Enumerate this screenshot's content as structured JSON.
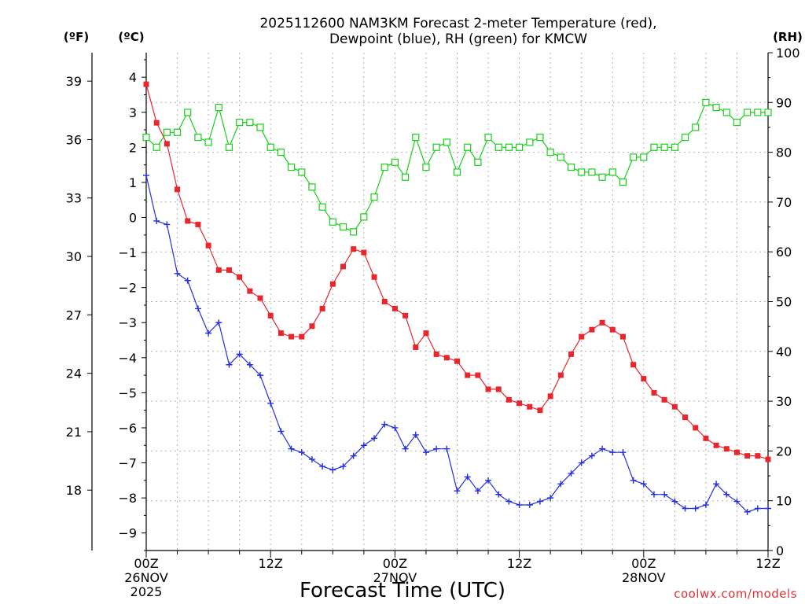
{
  "colors": {
    "temperature": "#e8262c",
    "dewpoint": "#2430e0",
    "rh": "#18d018",
    "grid": "#b0b0b0",
    "credit": "#e03030"
  },
  "chart_data": {
    "type": "line",
    "title": "2025112600 NAM3KM Forecast 2-meter Temperature (red),",
    "subtitle": "Dewpoint (blue), RH (green) for KMCW",
    "xlabel": "Forecast Time (UTC)",
    "credit": "coolwx.com/models",
    "left_unit_f": "(ºF)",
    "left_unit_c": "(ºC)",
    "right_unit": "(RH)",
    "x_range_hours": [
      0,
      60
    ],
    "x_step_hours": 1,
    "x_ticks": [
      {
        "hour": 0,
        "lines": [
          "00Z",
          "26NOV",
          "2025"
        ]
      },
      {
        "hour": 12,
        "lines": [
          "12Z"
        ]
      },
      {
        "hour": 24,
        "lines": [
          "00Z",
          "27NOV"
        ]
      },
      {
        "hour": 36,
        "lines": [
          "12Z"
        ]
      },
      {
        "hour": 48,
        "lines": [
          "00Z",
          "28NOV"
        ]
      },
      {
        "hour": 60,
        "lines": [
          "12Z"
        ]
      }
    ],
    "ylim_c": [
      -9.5,
      4.7
    ],
    "y_ticks_c": [
      4,
      3,
      2,
      1,
      0,
      -1,
      -2,
      -3,
      -4,
      -5,
      -6,
      -7,
      -8,
      -9
    ],
    "y_ticks_f": [
      39,
      36,
      33,
      30,
      27,
      24,
      21,
      18
    ],
    "ylim_rh": [
      0,
      100
    ],
    "y_ticks_rh": [
      100,
      90,
      80,
      70,
      60,
      50,
      40,
      30,
      20,
      10,
      0
    ],
    "series": [
      {
        "name": "Temperature",
        "unit": "C",
        "values": [
          3.8,
          2.7,
          2.1,
          0.8,
          -0.1,
          -0.2,
          -0.8,
          -1.5,
          -1.5,
          -1.7,
          -2.1,
          -2.3,
          -2.8,
          -3.3,
          -3.4,
          -3.4,
          -3.1,
          -2.6,
          -1.9,
          -1.4,
          -0.9,
          -1.0,
          -1.7,
          -2.4,
          -2.6,
          -2.8,
          -3.7,
          -3.3,
          -3.9,
          -4.0,
          -4.1,
          -4.5,
          -4.5,
          -4.9,
          -4.9,
          -5.2,
          -5.3,
          -5.4,
          -5.5,
          -5.1,
          -4.5,
          -3.9,
          -3.4,
          -3.2,
          -3.0,
          -3.2,
          -3.4,
          -4.2,
          -4.6,
          -5.0,
          -5.2,
          -5.4,
          -5.7,
          -6.0,
          -6.3,
          -6.5,
          -6.6,
          -6.7,
          -6.8,
          -6.8,
          -6.9
        ]
      },
      {
        "name": "Dewpoint",
        "unit": "C",
        "values": [
          1.2,
          -0.1,
          -0.2,
          -1.6,
          -1.8,
          -2.6,
          -3.3,
          -3.0,
          -4.2,
          -3.9,
          -4.2,
          -4.5,
          -5.3,
          -6.1,
          -6.6,
          -6.7,
          -6.9,
          -7.1,
          -7.2,
          -7.1,
          -6.8,
          -6.5,
          -6.3,
          -5.9,
          -6.0,
          -6.6,
          -6.2,
          -6.7,
          -6.6,
          -6.6,
          -7.8,
          -7.4,
          -7.8,
          -7.5,
          -7.9,
          -8.1,
          -8.2,
          -8.2,
          -8.1,
          -8.0,
          -7.6,
          -7.3,
          -7.0,
          -6.8,
          -6.6,
          -6.7,
          -6.7,
          -7.5,
          -7.6,
          -7.9,
          -7.9,
          -8.1,
          -8.3,
          -8.3,
          -8.2,
          -7.6,
          -7.9,
          -8.1,
          -8.4,
          -8.3,
          -8.3
        ]
      },
      {
        "name": "RH",
        "unit": "%",
        "values": [
          83,
          81,
          84,
          84,
          88,
          83,
          82,
          89,
          81,
          86,
          86,
          85,
          81,
          80,
          77,
          76,
          73,
          69,
          66,
          65,
          64,
          67,
          71,
          77,
          78,
          75,
          83,
          77,
          81,
          82,
          76,
          81,
          78,
          83,
          81,
          81,
          81,
          82,
          83,
          80,
          79,
          77,
          76,
          76,
          75,
          76,
          74,
          79,
          79,
          81,
          81,
          81,
          83,
          85,
          90,
          89,
          88,
          86,
          88,
          88,
          88
        ]
      }
    ]
  }
}
